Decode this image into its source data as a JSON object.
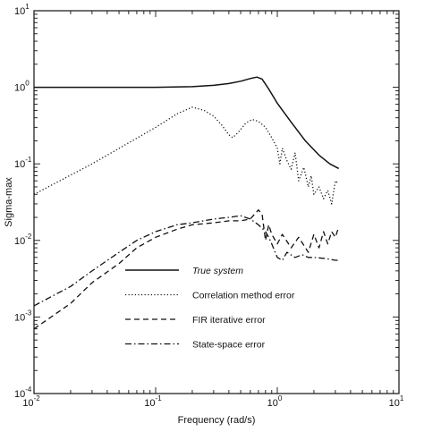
{
  "chart_data": {
    "type": "line",
    "title": "",
    "xlabel": "Frequency (rad/s)",
    "ylabel": "Sigma-max",
    "xscale": "log",
    "yscale": "log",
    "xlim": [
      0.01,
      10
    ],
    "ylim": [
      0.0001,
      10
    ],
    "x_ticks": [
      {
        "base": "10",
        "exp": "-2",
        "value": 0.01
      },
      {
        "base": "10",
        "exp": "-1",
        "value": 0.1
      },
      {
        "base": "10",
        "exp": "0",
        "value": 1
      },
      {
        "base": "10",
        "exp": "1",
        "value": 10
      }
    ],
    "y_ticks": [
      {
        "base": "10",
        "exp": "-4",
        "value": 0.0001
      },
      {
        "base": "10",
        "exp": "-3",
        "value": 0.001
      },
      {
        "base": "10",
        "exp": "-2",
        "value": 0.01
      },
      {
        "base": "10",
        "exp": "-1",
        "value": 0.1
      },
      {
        "base": "10",
        "exp": "0",
        "value": 1
      },
      {
        "base": "10",
        "exp": "1",
        "value": 10
      }
    ],
    "grid": false,
    "legend_position": "lower-center",
    "series": [
      {
        "name": "True system",
        "style": "solid",
        "x": [
          0.01,
          0.03,
          0.1,
          0.2,
          0.3,
          0.4,
          0.5,
          0.6,
          0.68,
          0.75,
          0.85,
          1.0,
          1.3,
          1.7,
          2.2,
          2.7,
          3.2
        ],
        "y": [
          1.0,
          1.0,
          1.0,
          1.02,
          1.06,
          1.12,
          1.2,
          1.3,
          1.36,
          1.28,
          0.95,
          0.62,
          0.35,
          0.2,
          0.13,
          0.1,
          0.087
        ]
      },
      {
        "name": "Correlation method error",
        "style": "dotted",
        "x": [
          0.01,
          0.03,
          0.1,
          0.15,
          0.2,
          0.25,
          0.3,
          0.35,
          0.4,
          0.43,
          0.48,
          0.55,
          0.62,
          0.7,
          0.8,
          0.9,
          1.0,
          1.05,
          1.1,
          1.2,
          1.3,
          1.4,
          1.5,
          1.65,
          1.8,
          1.9,
          2.0,
          2.2,
          2.4,
          2.6,
          2.8,
          3.0,
          3.2
        ],
        "y": [
          0.04,
          0.1,
          0.3,
          0.45,
          0.55,
          0.5,
          0.42,
          0.32,
          0.24,
          0.22,
          0.26,
          0.34,
          0.38,
          0.36,
          0.3,
          0.22,
          0.16,
          0.1,
          0.16,
          0.11,
          0.085,
          0.14,
          0.06,
          0.09,
          0.05,
          0.07,
          0.04,
          0.05,
          0.035,
          0.045,
          0.03,
          0.06,
          0.055
        ]
      },
      {
        "name": "FIR iterative error",
        "style": "dashed",
        "x": [
          0.01,
          0.02,
          0.03,
          0.05,
          0.07,
          0.1,
          0.15,
          0.2,
          0.3,
          0.4,
          0.5,
          0.6,
          0.65,
          0.7,
          0.75,
          0.8,
          0.85,
          0.9,
          1.0,
          1.1,
          1.3,
          1.5,
          1.8,
          2.0,
          2.2,
          2.4,
          2.6,
          2.8,
          3.0,
          3.2
        ],
        "y": [
          0.0007,
          0.0015,
          0.0028,
          0.005,
          0.008,
          0.011,
          0.014,
          0.016,
          0.017,
          0.018,
          0.018,
          0.019,
          0.022,
          0.025,
          0.022,
          0.01,
          0.016,
          0.012,
          0.009,
          0.012,
          0.008,
          0.011,
          0.007,
          0.012,
          0.008,
          0.013,
          0.009,
          0.013,
          0.011,
          0.015
        ]
      },
      {
        "name": "State-space error",
        "style": "dashdot",
        "x": [
          0.01,
          0.02,
          0.03,
          0.05,
          0.07,
          0.1,
          0.15,
          0.2,
          0.3,
          0.4,
          0.5,
          0.6,
          0.7,
          0.8,
          0.85,
          0.9,
          1.0,
          1.1,
          1.2,
          1.4,
          1.6,
          1.8,
          2.0,
          2.5,
          3.0,
          3.2
        ],
        "y": [
          0.0014,
          0.0025,
          0.004,
          0.007,
          0.01,
          0.013,
          0.016,
          0.017,
          0.019,
          0.02,
          0.021,
          0.019,
          0.016,
          0.013,
          0.011,
          0.009,
          0.006,
          0.0055,
          0.007,
          0.006,
          0.0065,
          0.006,
          0.006,
          0.0058,
          0.0055,
          0.0055
        ]
      }
    ]
  }
}
